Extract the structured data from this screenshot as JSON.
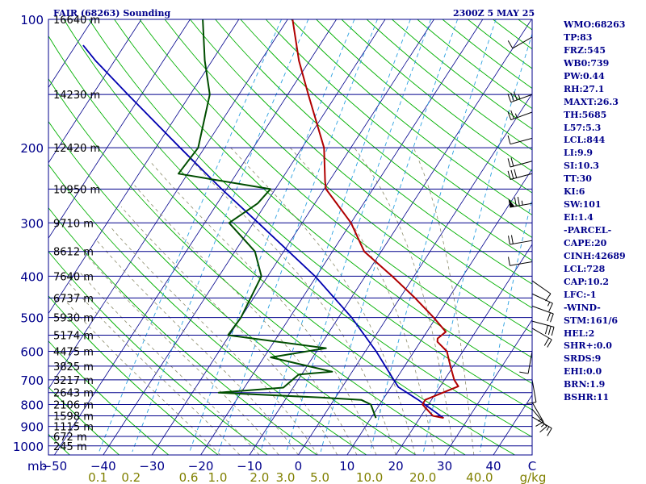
{
  "chart_data": {
    "type": "skewt",
    "title": "FAIR (68263) Sounding",
    "valid_time": "2300Z  5 MAY 25",
    "pressure_unit_label": "mb",
    "pressure_ticks": [
      100,
      200,
      300,
      400,
      500,
      600,
      700,
      800,
      900,
      1000
    ],
    "height_labels": [
      {
        "p": 100,
        "label": "16640 m"
      },
      {
        "p": 150,
        "label": "14230 m"
      },
      {
        "p": 200,
        "label": "12420 m"
      },
      {
        "p": 250,
        "label": "10950 m"
      },
      {
        "p": 300,
        "label": "9710 m"
      },
      {
        "p": 350,
        "label": "8612 m"
      },
      {
        "p": 400,
        "label": "7640 m"
      },
      {
        "p": 450,
        "label": "6737 m"
      },
      {
        "p": 500,
        "label": "5930 m"
      },
      {
        "p": 550,
        "label": "5174 m"
      },
      {
        "p": 600,
        "label": "4475 m"
      },
      {
        "p": 650,
        "label": "3825 m"
      },
      {
        "p": 700,
        "label": "3217 m"
      },
      {
        "p": 750,
        "label": "2643 m"
      },
      {
        "p": 800,
        "label": "2106 m"
      },
      {
        "p": 850,
        "label": "1598 m"
      },
      {
        "p": 900,
        "label": "1115 m"
      },
      {
        "p": 950,
        "label": "672 m"
      },
      {
        "p": 1000,
        "label": "245 m"
      }
    ],
    "temperature_ticks": [
      -50,
      -40,
      -30,
      -20,
      -10,
      0,
      10,
      20,
      30,
      40
    ],
    "temperature_end_label": "C",
    "mixing_ratio_ticks": [
      "0.1",
      "0.2",
      "0.6",
      "1.0",
      "2.0",
      "3.0",
      "5.0",
      "10.0",
      "20.0",
      "40.0"
    ],
    "mixing_ratio_unit": "g/kg",
    "temperature": [
      {
        "p": 860,
        "t": 24.9
      },
      {
        "p": 850,
        "t": 22.4
      },
      {
        "p": 800,
        "t": 18.8
      },
      {
        "p": 780,
        "t": 18.7
      },
      {
        "p": 725,
        "t": 23.7
      },
      {
        "p": 700,
        "t": 22.0
      },
      {
        "p": 650,
        "t": 19.4
      },
      {
        "p": 600,
        "t": 16.7
      },
      {
        "p": 570,
        "t": 13.5
      },
      {
        "p": 560,
        "t": 13.1
      },
      {
        "p": 540,
        "t": 13.9
      },
      {
        "p": 500,
        "t": 9.5
      },
      {
        "p": 450,
        "t": 3.1
      },
      {
        "p": 400,
        "t": -4.5
      },
      {
        "p": 350,
        "t": -13.5
      },
      {
        "p": 300,
        "t": -20.0
      },
      {
        "p": 250,
        "t": -29.6
      },
      {
        "p": 240,
        "t": -30.8
      },
      {
        "p": 200,
        "t": -35.5
      },
      {
        "p": 150,
        "t": -45.8
      },
      {
        "p": 125,
        "t": -52.2
      },
      {
        "p": 100,
        "t": -59.0
      }
    ],
    "dewpoint": [
      {
        "p": 860,
        "t": 11.0
      },
      {
        "p": 800,
        "t": 8.2
      },
      {
        "p": 780,
        "t": 5.6
      },
      {
        "p": 770,
        "t": -3.0
      },
      {
        "p": 750,
        "t": -24.6
      },
      {
        "p": 730,
        "t": -12.0
      },
      {
        "p": 680,
        "t": -10.6
      },
      {
        "p": 670,
        "t": -4.1
      },
      {
        "p": 620,
        "t": -18.6
      },
      {
        "p": 590,
        "t": -8.5
      },
      {
        "p": 550,
        "t": -30.3
      },
      {
        "p": 500,
        "t": -30.0
      },
      {
        "p": 400,
        "t": -31.3
      },
      {
        "p": 350,
        "t": -35.9
      },
      {
        "p": 300,
        "t": -45.0
      },
      {
        "p": 270,
        "t": -41.7
      },
      {
        "p": 250,
        "t": -41.0
      },
      {
        "p": 230,
        "t": -61.9
      },
      {
        "p": 200,
        "t": -61.3
      },
      {
        "p": 150,
        "t": -66.0
      },
      {
        "p": 125,
        "t": -71.5
      },
      {
        "p": 100,
        "t": -77.4
      }
    ],
    "parcel_path": [
      {
        "p": 860,
        "t": 24.9
      },
      {
        "p": 780,
        "t": 17.3
      },
      {
        "p": 728,
        "t": 11.5
      },
      {
        "p": 700,
        "t": 9.6
      },
      {
        "p": 600,
        "t": 2.2
      },
      {
        "p": 500,
        "t": -7.3
      },
      {
        "p": 400,
        "t": -20.3
      },
      {
        "p": 300,
        "t": -39.0
      },
      {
        "p": 250,
        "t": -51.0
      },
      {
        "p": 200,
        "t": -65.0
      },
      {
        "p": 150,
        "t": -82.8
      },
      {
        "p": 125,
        "t": -93.9
      },
      {
        "p": 115,
        "t": -98.5
      }
    ],
    "winds": [
      {
        "p": 855,
        "dir": 120,
        "kt": 15
      },
      {
        "p": 820,
        "dir": 140,
        "kt": 15
      },
      {
        "p": 790,
        "dir": 150,
        "kt": 15
      },
      {
        "p": 700,
        "dir": 170,
        "kt": 10
      },
      {
        "p": 600,
        "dir": 190,
        "kt": 10
      },
      {
        "p": 530,
        "dir": 120,
        "kt": 20
      },
      {
        "p": 510,
        "dir": 105,
        "kt": 30
      },
      {
        "p": 470,
        "dir": 110,
        "kt": 20
      },
      {
        "p": 440,
        "dir": 115,
        "kt": 15
      },
      {
        "p": 410,
        "dir": 125,
        "kt": 10
      },
      {
        "p": 370,
        "dir": 260,
        "kt": 10
      },
      {
        "p": 330,
        "dir": 260,
        "kt": 20
      },
      {
        "p": 270,
        "dir": 260,
        "kt": 75
      },
      {
        "p": 230,
        "dir": 255,
        "kt": 30
      },
      {
        "p": 215,
        "dir": 255,
        "kt": 20
      },
      {
        "p": 190,
        "dir": 255,
        "kt": 10
      },
      {
        "p": 165,
        "dir": 250,
        "kt": 25
      },
      {
        "p": 150,
        "dir": 250,
        "kt": 35
      },
      {
        "p": 110,
        "dir": 240,
        "kt": 10
      }
    ],
    "colors": {
      "isobar": "#00008b",
      "frame": "#00008b",
      "isotherm": "#00008b",
      "dry_adiabat": "#00b000",
      "moist_adiabat": "#8b8b6a",
      "mixing_ratio": "#2aa0e0",
      "temperature": "#b00000",
      "dewpoint": "#004d00",
      "parcel": "#0000b0",
      "wind_barb": "#000000",
      "pressure_label": "#00008b",
      "temperature_label": "#00008b",
      "mixing_ratio_label": "#808000",
      "background": "#ffffff"
    }
  },
  "indices": [
    "WMO:68263",
    "TP:83",
    "FRZ:545",
    "WB0:739",
    "PW:0.44",
    "RH:27.1",
    "MAXT:26.3",
    "TH:5685",
    "L57:5.3",
    "LCL:844",
    "LI:9.9",
    "SI:10.3",
    "TT:30",
    "KI:6",
    "SW:101",
    "EI:1.4",
    "-PARCEL-",
    "CAPE:20",
    "CINH:42689",
    "LCL:728",
    "CAP:10.2",
    "LFC:-1",
    "-WIND-",
    "STM:161/6",
    "HEL:2",
    "SHR+:0.0",
    "SRDS:9",
    "EHI:0.0",
    "BRN:1.9",
    "BSHR:11"
  ]
}
